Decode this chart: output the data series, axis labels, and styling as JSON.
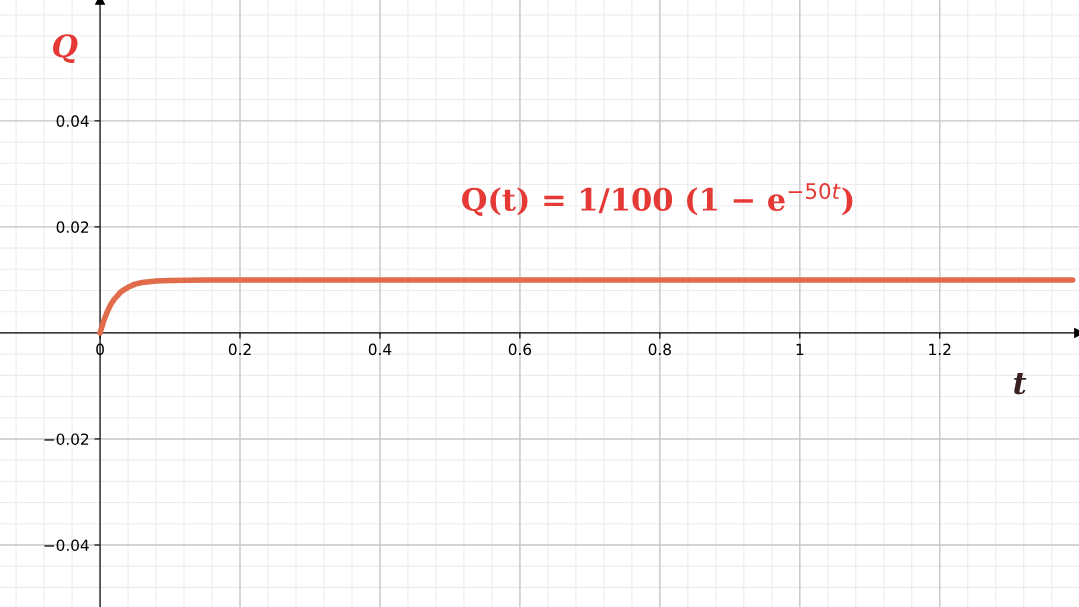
{
  "chart_data": {
    "type": "line",
    "xlabel": "t",
    "ylabel": "Q",
    "annotations": [
      "Q(t) = 1/100 (1 − e$^{−50t}$)"
    ],
    "x": [
      0,
      0.005,
      0.01,
      0.015,
      0.02,
      0.03,
      0.04,
      0.05,
      0.06,
      0.08,
      0.1,
      0.15,
      0.2,
      0.4,
      0.6,
      0.8,
      1,
      1.2,
      1.39
    ],
    "series": [
      {
        "color": "#e06c4c",
        "values": [
          0,
          0.0022,
          0.0039,
          0.0053,
          0.0063,
          0.0078,
          0.0086,
          0.0092,
          0.0095,
          0.0098,
          0.0099,
          0.01,
          0.01,
          0.01,
          0.01,
          0.01,
          0.01,
          0.01,
          0.01
        ]
      }
    ],
    "xlim": [
      -0.143,
      1.399
    ],
    "ylim": [
      -0.0517,
      0.0628
    ],
    "xticks": [
      0,
      0.2,
      0.4,
      0.6,
      0.8,
      1,
      1.2
    ],
    "yticks": [
      {
        "value": -0.04,
        "label": "−0.04"
      },
      {
        "value": -0.02,
        "label": "−0.02"
      },
      0.02,
      0.04
    ],
    "grid": true,
    "marker": "none",
    "line_style": "solid"
  }
}
